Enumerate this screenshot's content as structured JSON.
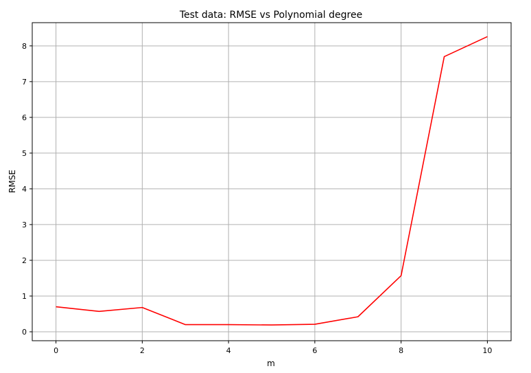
{
  "chart_data": {
    "type": "line",
    "title": "Test data: RMSE vs Polynomial degree",
    "xlabel": "m",
    "ylabel": "RMSE",
    "xlim": [
      -0.55,
      10.55
    ],
    "ylim": [
      -0.25,
      8.65
    ],
    "xticks": [
      0,
      2,
      4,
      6,
      8,
      10
    ],
    "yticks": [
      0,
      1,
      2,
      3,
      4,
      5,
      6,
      7,
      8
    ],
    "grid": true,
    "series": [
      {
        "color": "#ff0000",
        "x": [
          0,
          1,
          2,
          3,
          4,
          5,
          6,
          7,
          8,
          9,
          10
        ],
        "y": [
          0.7,
          0.57,
          0.68,
          0.2,
          0.2,
          0.19,
          0.21,
          0.42,
          1.57,
          7.7,
          8.26
        ]
      }
    ]
  }
}
